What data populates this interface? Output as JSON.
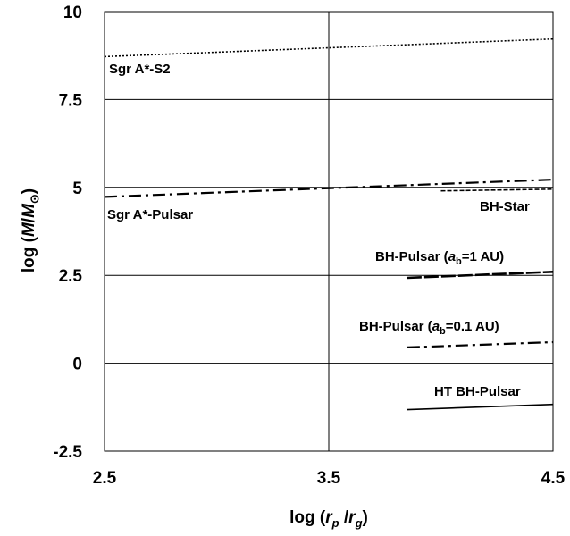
{
  "chart_data": {
    "type": "line",
    "title": "",
    "xlabel": {
      "pre": "log (",
      "a": "r",
      "a_sub": "p",
      "mid": " /",
      "b": "r",
      "b_sub": "g",
      "post": ")"
    },
    "ylabel": {
      "pre": "log (",
      "m": "M",
      "slash": "/",
      "m2": "M",
      "sun": "⊙",
      "post": ")"
    },
    "xlim": [
      2.5,
      4.5
    ],
    "ylim": [
      -2.5,
      10
    ],
    "x_ticks": [
      "2.5",
      "3.5",
      "4.5"
    ],
    "y_ticks": [
      "10",
      "7.5",
      "5",
      "2.5",
      "0",
      "-2.5"
    ],
    "grid": true,
    "series": [
      {
        "name": "Sgr A*-S2",
        "dash": "dotted",
        "x": [
          2.5,
          4.5
        ],
        "y": [
          8.72,
          9.22
        ]
      },
      {
        "name": "Sgr A*-Pulsar",
        "dash": "dashdot",
        "x": [
          2.5,
          4.5
        ],
        "y": [
          4.73,
          5.22
        ]
      },
      {
        "name": "BH-Star",
        "dash": "dashed-fine",
        "x": [
          4.0,
          4.5
        ],
        "y": [
          4.9,
          4.95
        ]
      },
      {
        "name": "BH-Pulsar (a_b=1 AU)",
        "dash": "longdash",
        "x": [
          3.85,
          4.5
        ],
        "y": [
          2.43,
          2.6
        ]
      },
      {
        "name": "BH-Pulsar (a_b=0.1 AU)",
        "dash": "dashdot",
        "x": [
          3.85,
          4.5
        ],
        "y": [
          0.45,
          0.6
        ]
      },
      {
        "name": "HT BH-Pulsar",
        "dash": "solid",
        "x": [
          3.85,
          4.5
        ],
        "y": [
          -1.32,
          -1.17
        ]
      }
    ],
    "labels": {
      "s2": "Sgr A*-S2",
      "pulsar": "Sgr A*-Pulsar",
      "star": "BH-Star",
      "bhp1_pre": "BH-Pulsar  (",
      "bhp1_a": "a",
      "bhp1_sub": "b",
      "bhp1_post": "=1 AU)",
      "bhp2_pre": "BH-Pulsar  (",
      "bhp2_a": "a",
      "bhp2_sub": "b",
      "bhp2_post": "=0.1 AU)",
      "ht": "HT BH-Pulsar"
    }
  }
}
